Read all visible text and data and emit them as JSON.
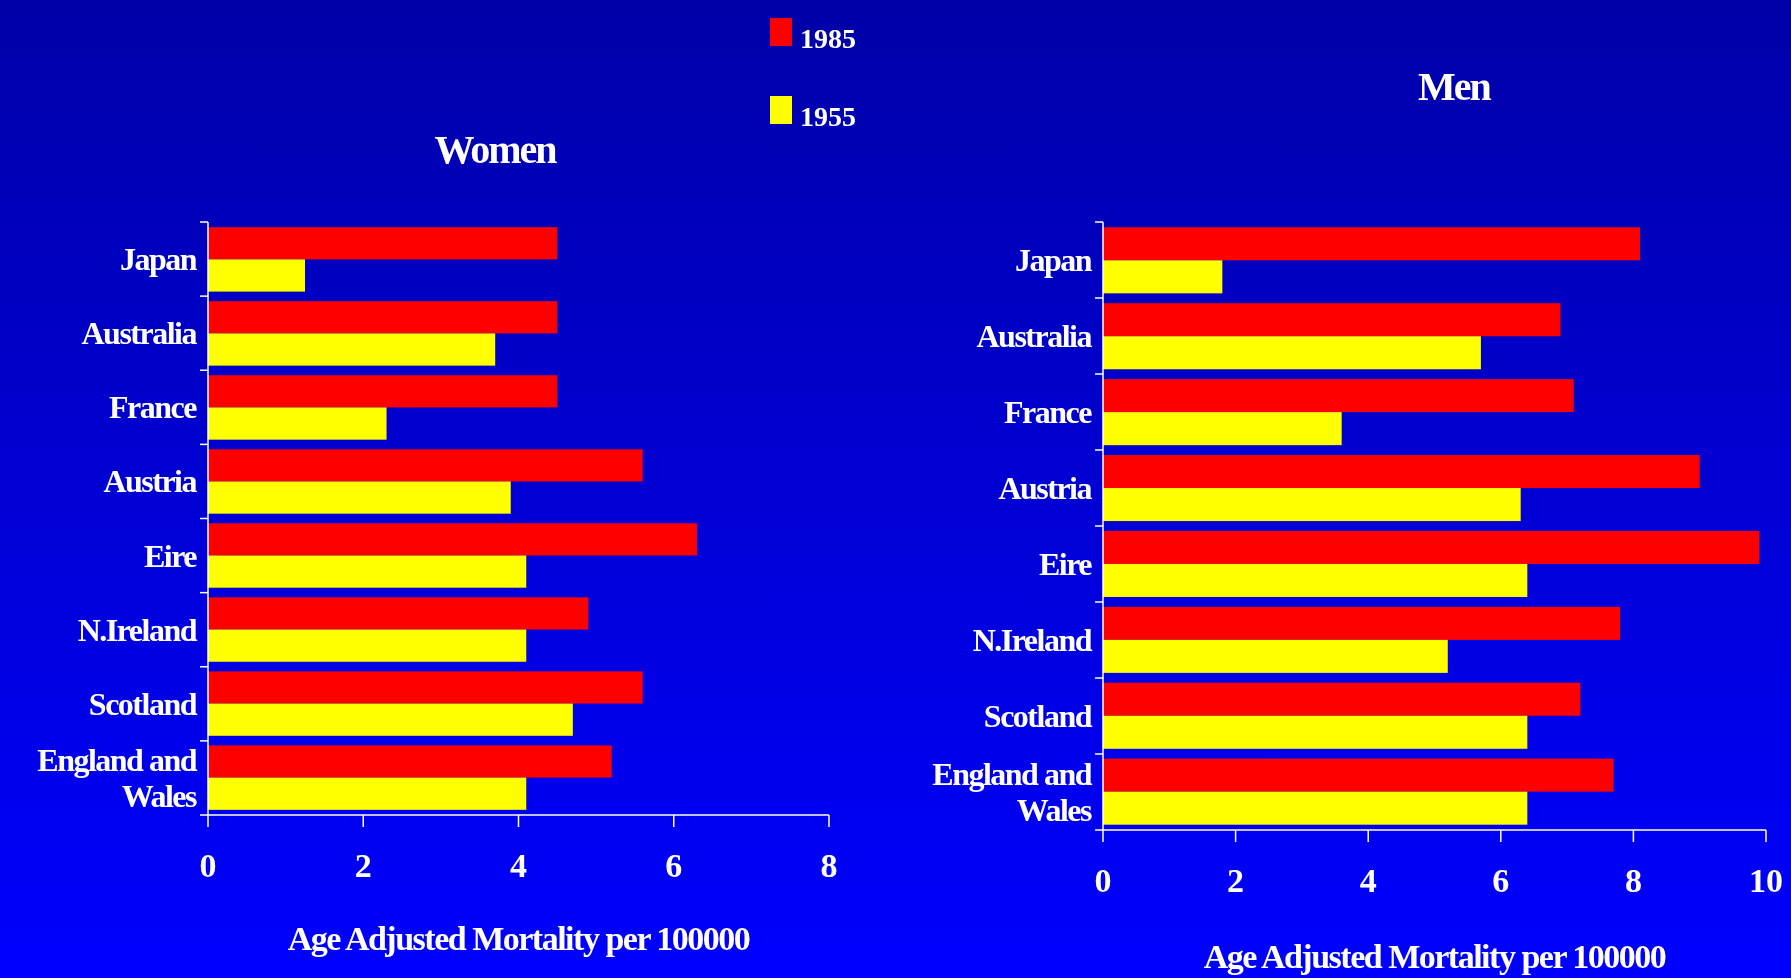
{
  "chart_data": [
    {
      "type": "bar",
      "orientation": "horizontal",
      "title": "Women",
      "xlabel": "Age Adjusted Mortality per 100000",
      "categories": [
        "Japan",
        "Australia",
        "France",
        "Austria",
        "Eire",
        "N.Ireland",
        "Scotland",
        "England and Wales"
      ],
      "xlim": [
        0,
        8
      ],
      "xticks": [
        0,
        2,
        4,
        6,
        8
      ],
      "legend": "top",
      "grid": false,
      "series": [
        {
          "name": "1985",
          "color": "#ff0000",
          "values": [
            4.5,
            4.5,
            4.5,
            5.6,
            6.3,
            4.9,
            5.6,
            5.2
          ]
        },
        {
          "name": "1955",
          "color": "#ffff00",
          "values": [
            1.25,
            3.7,
            2.3,
            3.9,
            4.1,
            4.1,
            4.7,
            4.1
          ]
        }
      ]
    },
    {
      "type": "bar",
      "orientation": "horizontal",
      "title": "Men",
      "xlabel": "Age Adjusted Mortality per 100000",
      "categories": [
        "Japan",
        "Australia",
        "France",
        "Austria",
        "Eire",
        "N.Ireland",
        "Scotland",
        "England and Wales"
      ],
      "xlim": [
        0,
        10
      ],
      "xticks": [
        0,
        2,
        4,
        6,
        8,
        10
      ],
      "grid": false,
      "series": [
        {
          "color": "#ff0000",
          "values": [
            8.1,
            6.9,
            7.1,
            9.0,
            9.9,
            7.8,
            7.2,
            7.7
          ]
        },
        {
          "color": "#ffff00",
          "values": [
            1.8,
            5.7,
            3.6,
            6.3,
            6.4,
            5.2,
            6.4,
            6.4
          ]
        }
      ]
    }
  ]
}
